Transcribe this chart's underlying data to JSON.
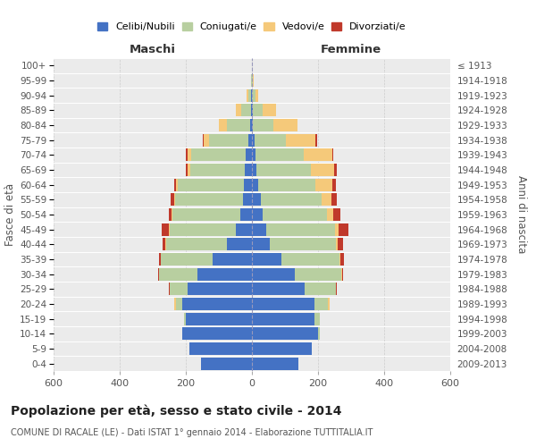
{
  "age_groups": [
    "0-4",
    "5-9",
    "10-14",
    "15-19",
    "20-24",
    "25-29",
    "30-34",
    "35-39",
    "40-44",
    "45-49",
    "50-54",
    "55-59",
    "60-64",
    "65-69",
    "70-74",
    "75-79",
    "80-84",
    "85-89",
    "90-94",
    "95-99",
    "100+"
  ],
  "birth_years": [
    "2009-2013",
    "2004-2008",
    "1999-2003",
    "1994-1998",
    "1989-1993",
    "1984-1988",
    "1979-1983",
    "1974-1978",
    "1969-1973",
    "1964-1968",
    "1959-1963",
    "1954-1958",
    "1949-1953",
    "1944-1948",
    "1939-1943",
    "1934-1938",
    "1929-1933",
    "1924-1928",
    "1919-1923",
    "1914-1918",
    "≤ 1913"
  ],
  "male": {
    "celibi": [
      155,
      190,
      210,
      200,
      210,
      195,
      165,
      120,
      75,
      50,
      35,
      28,
      25,
      22,
      20,
      10,
      5,
      3,
      2,
      0,
      0
    ],
    "coniugati": [
      0,
      0,
      2,
      5,
      20,
      55,
      115,
      155,
      185,
      200,
      205,
      205,
      200,
      165,
      165,
      120,
      70,
      30,
      8,
      2,
      0
    ],
    "vedovi": [
      0,
      0,
      0,
      0,
      5,
      0,
      0,
      2,
      1,
      2,
      2,
      2,
      5,
      8,
      10,
      15,
      25,
      15,
      5,
      1,
      0
    ],
    "divorziati": [
      0,
      0,
      0,
      0,
      0,
      2,
      5,
      5,
      10,
      20,
      10,
      10,
      5,
      5,
      5,
      5,
      0,
      0,
      0,
      0,
      0
    ]
  },
  "female": {
    "nubili": [
      140,
      180,
      200,
      190,
      190,
      160,
      130,
      90,
      55,
      42,
      32,
      26,
      18,
      14,
      12,
      8,
      4,
      2,
      1,
      1,
      0
    ],
    "coniugate": [
      0,
      2,
      5,
      15,
      40,
      95,
      140,
      175,
      200,
      210,
      195,
      185,
      175,
      165,
      145,
      95,
      60,
      30,
      10,
      2,
      0
    ],
    "vedove": [
      0,
      0,
      0,
      0,
      5,
      0,
      2,
      2,
      5,
      10,
      20,
      30,
      50,
      70,
      85,
      90,
      75,
      40,
      8,
      2,
      1
    ],
    "divorziate": [
      0,
      0,
      0,
      0,
      0,
      2,
      5,
      12,
      15,
      30,
      20,
      15,
      10,
      8,
      5,
      5,
      0,
      0,
      0,
      0,
      0
    ]
  },
  "colors": {
    "celibi": "#4472c4",
    "coniugati": "#b8cfa0",
    "vedovi": "#f5c97a",
    "divorziati": "#c0392b"
  },
  "xlim": 600,
  "title": "Popolazione per età, sesso e stato civile - 2014",
  "subtitle": "COMUNE DI RACALE (LE) - Dati ISTAT 1° gennaio 2014 - Elaborazione TUTTITALIA.IT",
  "ylabel_left": "Fasce di età",
  "ylabel_right": "Anni di nascita",
  "xlabel_left": "Maschi",
  "xlabel_right": "Femmine"
}
